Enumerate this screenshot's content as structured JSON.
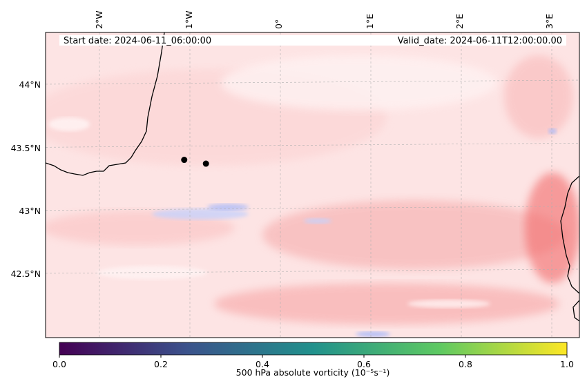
{
  "map": {
    "start_label": "Start date: 2024-06-11_06:00:00",
    "valid_label": "Valid_date: 2024-06-11T12:00:00.00",
    "lon_labels": [
      "2°W",
      "1°W",
      "0°",
      "1°E",
      "2°E",
      "3°E"
    ],
    "lat_labels": [
      "44°N",
      "43.5°N",
      "43°N",
      "42.5°N"
    ],
    "markers": [
      {
        "lon": -1.04,
        "lat": 43.4
      },
      {
        "lon": -0.8,
        "lat": 43.37
      }
    ],
    "colors": {
      "field_base": "#fde4e4",
      "positive": "#f7a6a6",
      "strong_positive": "#f26a6a",
      "negative": "#c8d2fb",
      "coastline": "#000000",
      "gridline": "#b0b0b0"
    }
  },
  "colorbar": {
    "label": "500 hPa absolute vorticity (10⁻⁵s⁻¹)",
    "ticks": [
      "0.0",
      "0.2",
      "0.4",
      "0.6",
      "0.8",
      "1.0"
    ],
    "range": [
      0.0,
      1.0
    ],
    "colormap": "viridis",
    "stops": [
      "#440154",
      "#3b528b",
      "#21918c",
      "#5ec962",
      "#fde725"
    ]
  }
}
